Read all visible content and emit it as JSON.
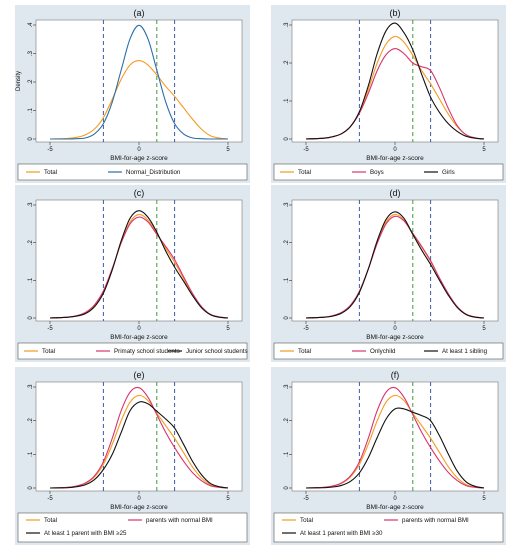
{
  "chart_data": [
    {
      "panel": "(a)",
      "type": "line",
      "ylabel": "Density",
      "xlabel": "BMI-for-age z-score",
      "xlim": [
        -5,
        5
      ],
      "ylim": [
        0,
        0.4
      ],
      "xticks": [
        -5,
        0,
        5
      ],
      "yticks": [
        0,
        0.1,
        0.2,
        0.3,
        0.4
      ],
      "ytick_labels": [
        "0",
        ".1",
        ".2",
        ".3",
        ".4"
      ],
      "vlines": [
        {
          "x": -2,
          "color": "#3b5aa8"
        },
        {
          "x": 1,
          "color": "#3e9a3e"
        },
        {
          "x": 2,
          "color": "#3b5aa8"
        }
      ],
      "series": [
        {
          "name": "Total",
          "color": "#f59a23",
          "x": [
            -5,
            -4,
            -3.5,
            -3,
            -2.5,
            -2,
            -1.5,
            -1,
            -0.5,
            0,
            0.5,
            1,
            1.5,
            2,
            2.5,
            3,
            3.5,
            4,
            4.5,
            5
          ],
          "y": [
            0,
            0.002,
            0.006,
            0.015,
            0.035,
            0.075,
            0.14,
            0.21,
            0.26,
            0.275,
            0.26,
            0.225,
            0.185,
            0.15,
            0.11,
            0.07,
            0.035,
            0.012,
            0.003,
            0
          ]
        },
        {
          "name": "Normal_Distribution",
          "color": "#2c6fa8",
          "x": [
            -5,
            -4,
            -3.5,
            -3,
            -2.5,
            -2,
            -1.5,
            -1,
            -0.5,
            0,
            0.5,
            1,
            1.5,
            2,
            2.5,
            3,
            3.5,
            4,
            4.5,
            5
          ],
          "y": [
            0,
            0,
            0.001,
            0.004,
            0.018,
            0.054,
            0.13,
            0.242,
            0.352,
            0.399,
            0.352,
            0.242,
            0.13,
            0.054,
            0.018,
            0.004,
            0.001,
            0,
            0,
            0
          ]
        }
      ],
      "legend": [
        "Total",
        "Normal_Distribution"
      ]
    },
    {
      "panel": "(b)",
      "type": "line",
      "xlabel": "BMI-for-age z-score",
      "xlim": [
        -5,
        5
      ],
      "ylim": [
        0,
        0.3
      ],
      "xticks": [
        -5,
        0,
        5
      ],
      "yticks": [
        0,
        0.1,
        0.2,
        0.3
      ],
      "ytick_labels": [
        "0",
        ".1",
        ".2",
        ".3"
      ],
      "vlines": [
        {
          "x": -2,
          "color": "#3b5aa8"
        },
        {
          "x": 1,
          "color": "#3e9a3e"
        },
        {
          "x": 2,
          "color": "#3b5aa8"
        }
      ],
      "series": [
        {
          "name": "Total",
          "color": "#f59a23",
          "x": [
            -5,
            -4,
            -3.5,
            -3,
            -2.5,
            -2,
            -1.5,
            -1,
            -0.5,
            0,
            0.5,
            1,
            1.5,
            2,
            2.5,
            3,
            3.5,
            4,
            4.5,
            5
          ],
          "y": [
            0,
            0.002,
            0.006,
            0.014,
            0.033,
            0.07,
            0.13,
            0.2,
            0.25,
            0.27,
            0.255,
            0.22,
            0.18,
            0.145,
            0.105,
            0.065,
            0.032,
            0.011,
            0.003,
            0
          ]
        },
        {
          "name": "Boys",
          "color": "#d9346e",
          "x": [
            -5,
            -4,
            -3.5,
            -3,
            -2.5,
            -2,
            -1.5,
            -1,
            -0.5,
            0,
            0.5,
            1,
            1.5,
            2,
            2.5,
            3,
            3.5,
            4,
            4.5,
            5
          ],
          "y": [
            0,
            0.002,
            0.006,
            0.014,
            0.033,
            0.068,
            0.12,
            0.18,
            0.222,
            0.238,
            0.225,
            0.2,
            0.19,
            0.18,
            0.135,
            0.08,
            0.035,
            0.011,
            0.003,
            0
          ]
        },
        {
          "name": "Girls",
          "color": "#111111",
          "x": [
            -5,
            -4,
            -3.5,
            -3,
            -2.5,
            -2,
            -1.5,
            -1,
            -0.5,
            0,
            0.5,
            1,
            1.5,
            2,
            2.5,
            3,
            3.5,
            4,
            4.5,
            5
          ],
          "y": [
            0,
            0.002,
            0.006,
            0.014,
            0.033,
            0.072,
            0.14,
            0.225,
            0.285,
            0.305,
            0.28,
            0.235,
            0.17,
            0.11,
            0.07,
            0.04,
            0.02,
            0.007,
            0.002,
            0
          ]
        }
      ],
      "legend": [
        "Total",
        "Boys",
        "Girls"
      ]
    },
    {
      "panel": "(c)",
      "type": "line",
      "xlabel": "BMI-for-age z-score",
      "xlim": [
        -5,
        5
      ],
      "ylim": [
        0,
        0.3
      ],
      "xticks": [
        -5,
        0,
        5
      ],
      "yticks": [
        0,
        0.1,
        0.2,
        0.3
      ],
      "ytick_labels": [
        "0",
        ".1",
        ".2",
        ".3"
      ],
      "vlines": [
        {
          "x": -2,
          "color": "#3b5aa8"
        },
        {
          "x": 1,
          "color": "#3e9a3e"
        },
        {
          "x": 2,
          "color": "#3b5aa8"
        }
      ],
      "series": [
        {
          "name": "Total",
          "color": "#f59a23",
          "x": [
            -5,
            -4,
            -3.5,
            -3,
            -2.5,
            -2,
            -1.5,
            -1,
            -0.5,
            0,
            0.5,
            1,
            1.5,
            2,
            2.5,
            3,
            3.5,
            4,
            4.5,
            5
          ],
          "y": [
            0,
            0.002,
            0.006,
            0.014,
            0.033,
            0.07,
            0.13,
            0.2,
            0.255,
            0.275,
            0.26,
            0.225,
            0.185,
            0.148,
            0.105,
            0.063,
            0.03,
            0.01,
            0.003,
            0
          ]
        },
        {
          "name": "Primaty school students",
          "color": "#d9346e",
          "x": [
            -5,
            -4,
            -3.5,
            -3,
            -2.5,
            -2,
            -1.5,
            -1,
            -0.5,
            0,
            0.5,
            1,
            1.5,
            2,
            2.5,
            3,
            3.5,
            4,
            4.5,
            5
          ],
          "y": [
            0,
            0.002,
            0.006,
            0.015,
            0.035,
            0.072,
            0.132,
            0.2,
            0.25,
            0.268,
            0.255,
            0.222,
            0.19,
            0.155,
            0.11,
            0.066,
            0.031,
            0.01,
            0.003,
            0
          ]
        },
        {
          "name": "Junior school students",
          "color": "#111111",
          "x": [
            -5,
            -4,
            -3.5,
            -3,
            -2.5,
            -2,
            -1.5,
            -1,
            -0.5,
            0,
            0.5,
            1,
            1.5,
            2,
            2.5,
            3,
            3.5,
            4,
            4.5,
            5
          ],
          "y": [
            0,
            0.002,
            0.005,
            0.012,
            0.03,
            0.066,
            0.128,
            0.205,
            0.265,
            0.285,
            0.268,
            0.228,
            0.178,
            0.135,
            0.098,
            0.06,
            0.028,
            0.009,
            0.002,
            0
          ]
        }
      ],
      "legend": [
        "Total",
        "Primaty school students",
        "Junior school students"
      ]
    },
    {
      "panel": "(d)",
      "type": "line",
      "xlabel": "BMI-for-age z-score",
      "xlim": [
        -5,
        5
      ],
      "ylim": [
        0,
        0.3
      ],
      "xticks": [
        -5,
        0,
        5
      ],
      "yticks": [
        0,
        0.1,
        0.2,
        0.3
      ],
      "ytick_labels": [
        "0",
        ".1",
        ".2",
        ".3"
      ],
      "vlines": [
        {
          "x": -2,
          "color": "#3b5aa8"
        },
        {
          "x": 1,
          "color": "#3e9a3e"
        },
        {
          "x": 2,
          "color": "#3b5aa8"
        }
      ],
      "series": [
        {
          "name": "Total",
          "color": "#f59a23",
          "x": [
            -5,
            -4,
            -3.5,
            -3,
            -2.5,
            -2,
            -1.5,
            -1,
            -0.5,
            0,
            0.5,
            1,
            1.5,
            2,
            2.5,
            3,
            3.5,
            4,
            4.5,
            5
          ],
          "y": [
            0,
            0.002,
            0.006,
            0.014,
            0.033,
            0.07,
            0.13,
            0.2,
            0.255,
            0.275,
            0.26,
            0.222,
            0.188,
            0.15,
            0.105,
            0.063,
            0.03,
            0.01,
            0.003,
            0
          ]
        },
        {
          "name": "Onlychild",
          "color": "#d9346e",
          "x": [
            -5,
            -4,
            -3.5,
            -3,
            -2.5,
            -2,
            -1.5,
            -1,
            -0.5,
            0,
            0.5,
            1,
            1.5,
            2,
            2.5,
            3,
            3.5,
            4,
            4.5,
            5
          ],
          "y": [
            0,
            0.002,
            0.006,
            0.015,
            0.034,
            0.071,
            0.13,
            0.198,
            0.25,
            0.27,
            0.258,
            0.225,
            0.19,
            0.152,
            0.106,
            0.064,
            0.03,
            0.01,
            0.003,
            0
          ]
        },
        {
          "name": "At least 1 sibling",
          "color": "#111111",
          "x": [
            -5,
            -4,
            -3.5,
            -3,
            -2.5,
            -2,
            -1.5,
            -1,
            -0.5,
            0,
            0.5,
            1,
            1.5,
            2,
            2.5,
            3,
            3.5,
            4,
            4.5,
            5
          ],
          "y": [
            0,
            0.002,
            0.005,
            0.013,
            0.031,
            0.068,
            0.13,
            0.205,
            0.262,
            0.282,
            0.265,
            0.222,
            0.18,
            0.142,
            0.1,
            0.06,
            0.028,
            0.009,
            0.002,
            0
          ]
        }
      ],
      "legend": [
        "Total",
        "Onlychild",
        "At least 1 sibling"
      ]
    },
    {
      "panel": "(e)",
      "type": "line",
      "xlabel": "BMI-for-age z-score",
      "xlim": [
        -5,
        5
      ],
      "ylim": [
        0,
        0.3
      ],
      "xticks": [
        -5,
        0,
        5
      ],
      "yticks": [
        0,
        0.1,
        0.2,
        0.3
      ],
      "ytick_labels": [
        "0",
        ".1",
        ".2",
        ".3"
      ],
      "vlines": [
        {
          "x": -2,
          "color": "#3b5aa8"
        },
        {
          "x": 1,
          "color": "#3e9a3e"
        },
        {
          "x": 2,
          "color": "#3b5aa8"
        }
      ],
      "series": [
        {
          "name": "Total",
          "color": "#f59a23",
          "x": [
            -5,
            -4,
            -3.5,
            -3,
            -2.5,
            -2,
            -1.5,
            -1,
            -0.5,
            0,
            0.5,
            1,
            1.5,
            2,
            2.5,
            3,
            3.5,
            4,
            4.5,
            5
          ],
          "y": [
            0,
            0.002,
            0.006,
            0.014,
            0.033,
            0.07,
            0.13,
            0.2,
            0.255,
            0.275,
            0.26,
            0.222,
            0.185,
            0.148,
            0.105,
            0.063,
            0.03,
            0.01,
            0.003,
            0
          ]
        },
        {
          "name": "parents with normal BMI",
          "color": "#d9346e",
          "x": [
            -5,
            -4,
            -3.5,
            -3,
            -2.5,
            -2,
            -1.5,
            -1,
            -0.5,
            0,
            0.5,
            1,
            1.5,
            2,
            2.5,
            3,
            3.5,
            4,
            4.5,
            5
          ],
          "y": [
            0,
            0.002,
            0.006,
            0.015,
            0.036,
            0.078,
            0.148,
            0.23,
            0.285,
            0.298,
            0.27,
            0.218,
            0.165,
            0.12,
            0.08,
            0.046,
            0.022,
            0.007,
            0.002,
            0
          ]
        },
        {
          "name": "At least 1 parent with BMI ≥25",
          "color": "#111111",
          "x": [
            -5,
            -4,
            -3.5,
            -3,
            -2.5,
            -2,
            -1.5,
            -1,
            -0.5,
            0,
            0.5,
            1,
            1.5,
            2,
            2.5,
            3,
            3.5,
            4,
            4.5,
            5
          ],
          "y": [
            0,
            0.001,
            0.004,
            0.01,
            0.025,
            0.055,
            0.1,
            0.165,
            0.23,
            0.255,
            0.25,
            0.228,
            0.205,
            0.178,
            0.13,
            0.08,
            0.04,
            0.014,
            0.004,
            0
          ]
        }
      ],
      "legend": [
        "Total",
        "parents with normal BMI",
        "At least 1 parent with BMI ≥25"
      ]
    },
    {
      "panel": "(f)",
      "type": "line",
      "xlabel": "BMI-for-age z-score",
      "xlim": [
        -5,
        5
      ],
      "ylim": [
        0,
        0.3
      ],
      "xticks": [
        -5,
        0,
        5
      ],
      "yticks": [
        0,
        0.1,
        0.2,
        0.3
      ],
      "ytick_labels": [
        "0",
        ".1",
        ".2",
        ".3"
      ],
      "vlines": [
        {
          "x": -2,
          "color": "#3b5aa8"
        },
        {
          "x": 1,
          "color": "#3e9a3e"
        },
        {
          "x": 2,
          "color": "#3b5aa8"
        }
      ],
      "series": [
        {
          "name": "Total",
          "color": "#f59a23",
          "x": [
            -5,
            -4,
            -3.5,
            -3,
            -2.5,
            -2,
            -1.5,
            -1,
            -0.5,
            0,
            0.5,
            1,
            1.5,
            2,
            2.5,
            3,
            3.5,
            4,
            4.5,
            5
          ],
          "y": [
            0,
            0.002,
            0.006,
            0.014,
            0.033,
            0.07,
            0.13,
            0.2,
            0.255,
            0.275,
            0.26,
            0.222,
            0.185,
            0.148,
            0.105,
            0.063,
            0.03,
            0.01,
            0.003,
            0
          ]
        },
        {
          "name": "parents with normal BMI",
          "color": "#d9346e",
          "x": [
            -5,
            -4,
            -3.5,
            -3,
            -2.5,
            -2,
            -1.5,
            -1,
            -0.5,
            0,
            0.5,
            1,
            1.5,
            2,
            2.5,
            3,
            3.5,
            4,
            4.5,
            5
          ],
          "y": [
            0,
            0.002,
            0.006,
            0.015,
            0.036,
            0.078,
            0.148,
            0.23,
            0.285,
            0.298,
            0.27,
            0.218,
            0.165,
            0.12,
            0.08,
            0.046,
            0.022,
            0.007,
            0.002,
            0
          ]
        },
        {
          "name": "At least 1 parent with BMI ≥30",
          "color": "#111111",
          "x": [
            -5,
            -4,
            -3.5,
            -3,
            -2.5,
            -2,
            -1.5,
            -1,
            -0.5,
            0,
            0.5,
            1,
            1.5,
            2,
            2.5,
            3,
            3.5,
            4,
            4.5,
            5
          ],
          "y": [
            0,
            0.001,
            0.003,
            0.008,
            0.02,
            0.045,
            0.09,
            0.15,
            0.205,
            0.235,
            0.235,
            0.225,
            0.215,
            0.2,
            0.155,
            0.1,
            0.05,
            0.018,
            0.005,
            0
          ]
        }
      ],
      "legend": [
        "Total",
        "parents with normal BMI",
        "At least 1 parent with BMI ≥30"
      ]
    }
  ]
}
